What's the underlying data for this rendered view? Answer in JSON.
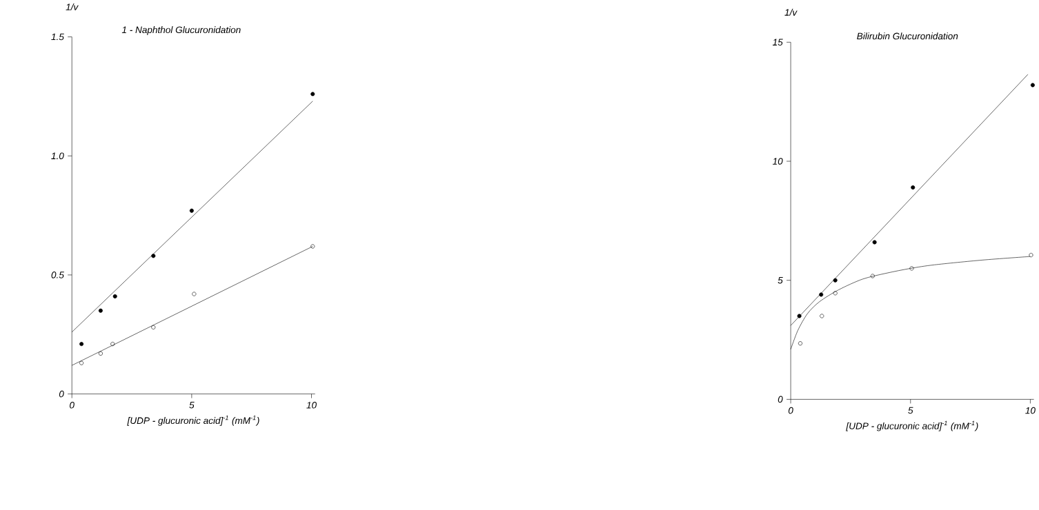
{
  "chart_data": [
    {
      "type": "scatter",
      "title": "1 - Naphthol  Glucuronidation",
      "xlabel": "[UDP - glucuronic  acid]$^{-1}$ (mM$^{-1}$)",
      "ylabel": "1/v",
      "xlim": [
        0,
        10.15
      ],
      "ylim": [
        0,
        1.5
      ],
      "xticks": [
        0,
        5,
        10
      ],
      "yticks": [
        0,
        {
          "value": 0.5,
          "label": "0.5"
        },
        {
          "value": 1,
          "label": "1.0"
        },
        1.5
      ],
      "series": [
        {
          "type": "scatter",
          "marker": "circle",
          "color": "#000000",
          "x": [
            0.4,
            1.2,
            1.8,
            3.4,
            5.0,
            10.05
          ],
          "values": [
            0.21,
            0.35,
            0.41,
            0.58,
            0.77,
            1.26
          ]
        },
        {
          "type": "scatter",
          "marker": "circle_open",
          "color": "#000000",
          "x": [
            0.4,
            1.2,
            1.7,
            3.4,
            5.1,
            10.05
          ],
          "values": [
            0.13,
            0.17,
            0.21,
            0.28,
            0.42,
            0.62
          ]
        },
        {
          "type": "line",
          "marker": "none",
          "color": "#000000",
          "x": [
            0,
            10.05
          ],
          "values": [
            0.26,
            1.23
          ]
        },
        {
          "type": "line",
          "marker": "none",
          "color": "#000000",
          "x": [
            0,
            10.05
          ],
          "values": [
            0.12,
            0.62
          ]
        }
      ]
    },
    {
      "type": "scatter",
      "title": "Bilirubin  Glucuronidation",
      "xlabel": "[UDP - glucuronic  acid]$^{-1}$ (mM$^{-1}$)",
      "ylabel": "1/v",
      "xlim": [
        0,
        10.15
      ],
      "ylim": [
        0,
        15
      ],
      "xticks": [
        0,
        5,
        10
      ],
      "yticks": [
        0,
        5,
        10,
        15
      ],
      "series": [
        {
          "type": "scatter",
          "marker": "circle",
          "color": "#000000",
          "x": [
            0.36,
            1.27,
            1.86,
            3.5,
            5.1,
            10.1
          ],
          "values": [
            3.5,
            4.4,
            5.0,
            6.6,
            8.9,
            13.2
          ]
        },
        {
          "type": "scatter",
          "marker": "circle_open",
          "color": "#000000",
          "x": [
            0.4,
            1.3,
            1.86,
            3.42,
            5.05,
            10.03
          ],
          "values": [
            2.35,
            3.5,
            4.46,
            5.18,
            5.5,
            6.06
          ]
        },
        {
          "type": "line",
          "marker": "none",
          "color": "#000000",
          "x": [
            0,
            9.9
          ],
          "values": [
            3.1,
            13.65
          ]
        },
        {
          "type": "line",
          "marker": "none",
          "color": "#000000",
          "x": [
            0,
            0.3,
            0.7,
            1.2,
            2,
            3,
            4,
            5,
            6,
            8,
            10
          ],
          "values": [
            2.1,
            2.9,
            3.6,
            4.1,
            4.6,
            5.05,
            5.3,
            5.5,
            5.65,
            5.85,
            6.0
          ]
        }
      ]
    }
  ]
}
